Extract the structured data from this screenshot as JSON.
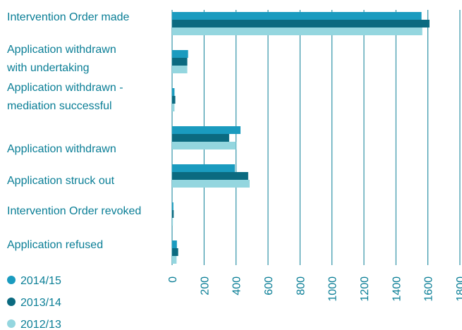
{
  "chart_data": {
    "type": "barh",
    "categories": [
      "Intervention Order made",
      "Application withdrawn\nwith undertaking",
      "Application withdrawn -\nmediation successful",
      "Application withdrawn",
      "Application struck out",
      "Intervention Order revoked",
      "Application refused"
    ],
    "series": [
      {
        "name": "2014/15",
        "color": "#1a9bbf",
        "values": [
          1560,
          100,
          15,
          428,
          393,
          8,
          30
        ]
      },
      {
        "name": "2013/14",
        "color": "#0b6a80",
        "values": [
          1610,
          95,
          20,
          357,
          476,
          10,
          38
        ]
      },
      {
        "name": "2012/13",
        "color": "#94d6df",
        "values": [
          1565,
          95,
          15,
          400,
          485,
          5,
          28
        ]
      }
    ],
    "xlim": [
      0,
      1800
    ],
    "xticks": [
      0,
      200,
      400,
      600,
      800,
      1000,
      1200,
      1400,
      1600,
      1800
    ],
    "grid": true
  }
}
